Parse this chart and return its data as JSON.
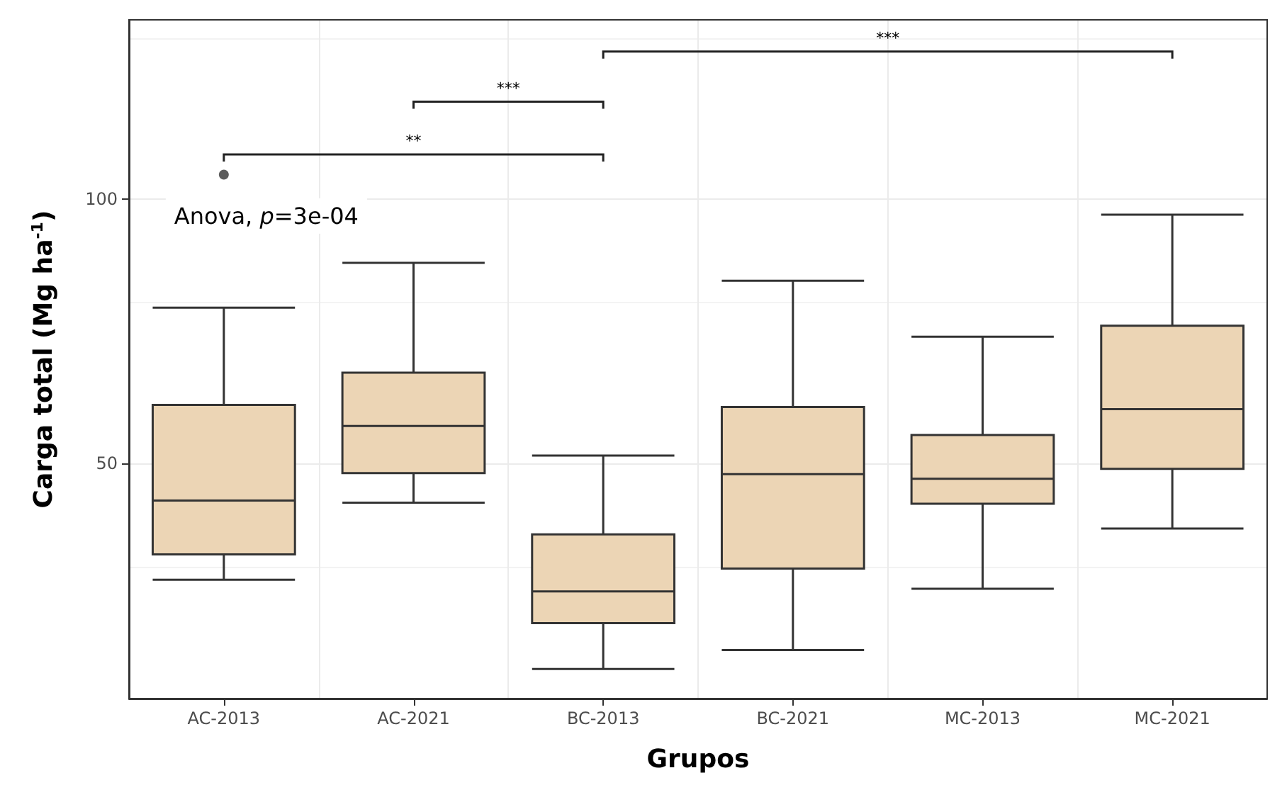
{
  "chart_data": {
    "type": "box",
    "xlabel": "Grupos",
    "ylabel": "Carga total (Mg ha$^{-1}$)",
    "categories": [
      "AC-2013",
      "AC-2021",
      "BC-2013",
      "BC-2021",
      "MC-2013",
      "MC-2021"
    ],
    "color": "#ecd5b5",
    "boxes": [
      {
        "low": 28.0,
        "q1": 32.8,
        "median": 43.0,
        "q3": 61.1,
        "high": 79.5,
        "outliers": [
          104.7
        ]
      },
      {
        "low": 42.6,
        "q1": 48.2,
        "median": 57.1,
        "q3": 67.2,
        "high": 88.0
      },
      {
        "low": 11.1,
        "q1": 19.8,
        "median": 25.8,
        "q3": 36.6,
        "high": 51.5
      },
      {
        "low": 14.7,
        "q1": 30.1,
        "median": 48.0,
        "q3": 60.7,
        "high": 84.6
      },
      {
        "low": 26.3,
        "q1": 42.4,
        "median": 47.1,
        "q3": 55.4,
        "high": 74.0
      },
      {
        "low": 37.7,
        "q1": 49.0,
        "median": 60.3,
        "q3": 76.1,
        "high": 97.1
      }
    ],
    "ylim": [
      5.5,
      134
    ],
    "yticks": [
      50,
      100
    ],
    "grid": true,
    "annotations": [
      "Anova, p=3e-04",
      "**",
      "***",
      "***"
    ]
  }
}
